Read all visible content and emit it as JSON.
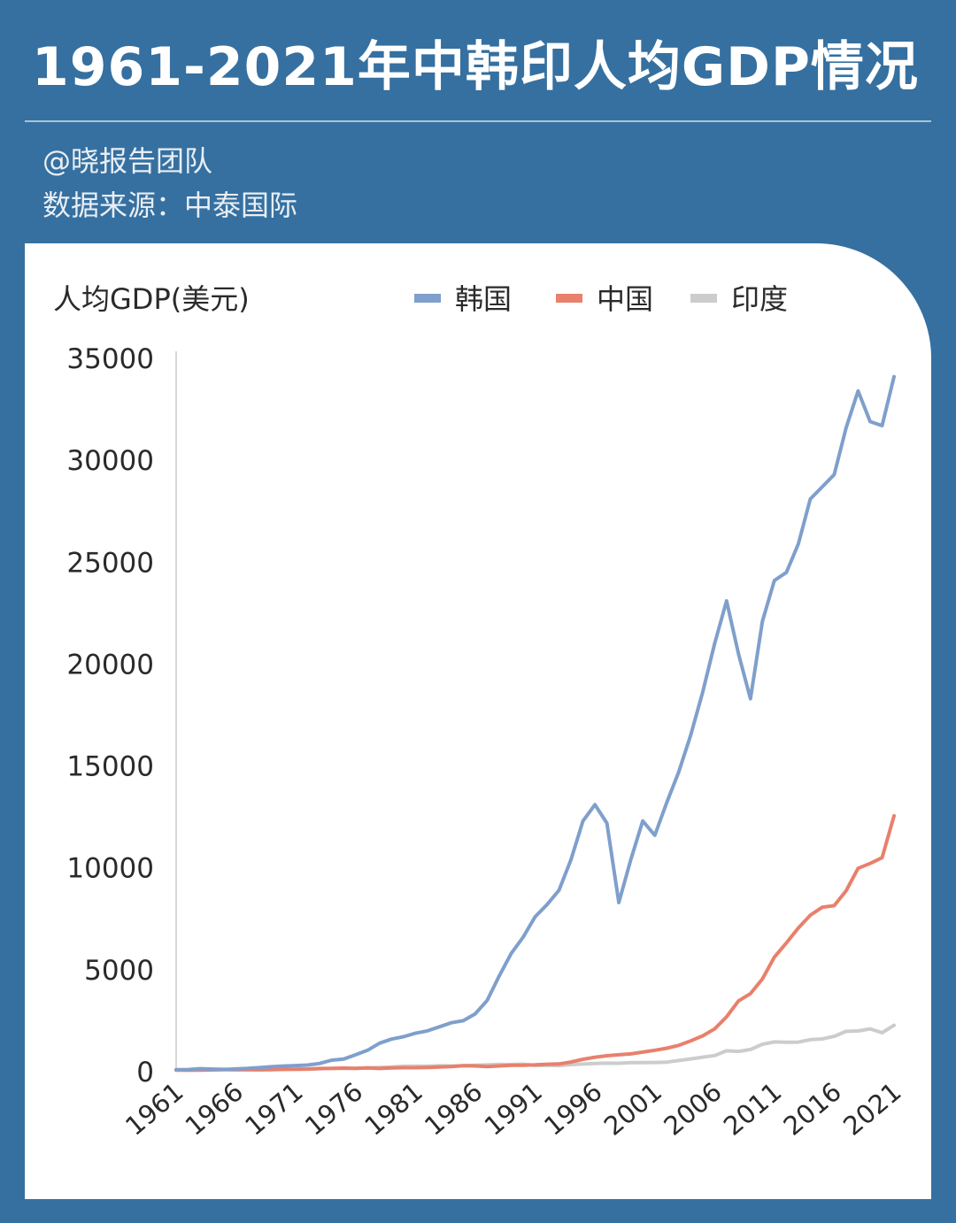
{
  "header": {
    "title": "1961-2021年中韩印人均GDP情况",
    "credit": "@晓报告团队",
    "source": "数据来源：中泰国际"
  },
  "chart_data": {
    "type": "line",
    "ylabel": "人均GDP(美元)",
    "ylim": [
      0,
      35000
    ],
    "yticks": [
      0,
      5000,
      10000,
      15000,
      20000,
      25000,
      30000,
      35000
    ],
    "xlim": [
      1961,
      2021
    ],
    "xticks": [
      "1961",
      "1966",
      "1971",
      "1976",
      "1981",
      "1986",
      "1991",
      "1996",
      "2001",
      "2006",
      "2011",
      "2016",
      "2021"
    ],
    "legend_position": "top",
    "grid": false,
    "series": [
      {
        "name": "韩国",
        "color": "#7f9fcc",
        "x": [
          1961,
          1962,
          1963,
          1964,
          1965,
          1966,
          1967,
          1968,
          1969,
          1970,
          1971,
          1972,
          1973,
          1974,
          1975,
          1976,
          1977,
          1978,
          1979,
          1980,
          1981,
          1982,
          1983,
          1984,
          1985,
          1986,
          1987,
          1988,
          1989,
          1990,
          1991,
          1992,
          1993,
          1994,
          1995,
          1996,
          1997,
          1998,
          1999,
          2000,
          2001,
          2002,
          2003,
          2004,
          2005,
          2006,
          2007,
          2008,
          2009,
          2010,
          2011,
          2012,
          2013,
          2014,
          2015,
          2016,
          2017,
          2018,
          2019,
          2020,
          2021
        ],
        "values": [
          94,
          106,
          146,
          124,
          109,
          133,
          161,
          198,
          243,
          279,
          301,
          324,
          406,
          564,
          615,
          830,
          1051,
          1400,
          1600,
          1715,
          1883,
          2000,
          2200,
          2400,
          2500,
          2840,
          3500,
          4700,
          5800,
          6600,
          7600,
          8200,
          8900,
          10400,
          12300,
          13100,
          12200,
          8300,
          10400,
          12300,
          11600,
          13200,
          14700,
          16500,
          18600,
          21000,
          23100,
          20500,
          18300,
          22100,
          24100,
          24500,
          25900,
          28100,
          28700,
          29300,
          31600,
          33400,
          31900,
          31700,
          34100
        ]
      },
      {
        "name": "中国",
        "color": "#e8806c",
        "x": [
          1961,
          1962,
          1963,
          1964,
          1965,
          1966,
          1967,
          1968,
          1969,
          1970,
          1971,
          1972,
          1973,
          1974,
          1975,
          1976,
          1977,
          1978,
          1979,
          1980,
          1981,
          1982,
          1983,
          1984,
          1985,
          1986,
          1987,
          1988,
          1989,
          1990,
          1991,
          1992,
          1993,
          1994,
          1995,
          1996,
          1997,
          1998,
          1999,
          2000,
          2001,
          2002,
          2003,
          2004,
          2005,
          2006,
          2007,
          2008,
          2009,
          2010,
          2011,
          2012,
          2013,
          2014,
          2015,
          2016,
          2017,
          2018,
          2019,
          2020,
          2021
        ],
        "values": [
          76,
          70,
          74,
          85,
          98,
          104,
          97,
          91,
          100,
          113,
          119,
          132,
          157,
          160,
          178,
          165,
          185,
          156,
          184,
          195,
          197,
          203,
          225,
          250,
          294,
          281,
          252,
          284,
          311,
          318,
          333,
          366,
          377,
          473,
          610,
          709,
          782,
          829,
          873,
          959,
          1053,
          1149,
          1289,
          1509,
          1753,
          2099,
          2694,
          3468,
          3832,
          4550,
          5618,
          6317,
          7051,
          7679,
          8067,
          8148,
          8879,
          9977,
          10216,
          10500,
          12556
        ]
      },
      {
        "name": "印度",
        "color": "#cccccc",
        "x": [
          1961,
          1962,
          1963,
          1964,
          1965,
          1966,
          1967,
          1968,
          1969,
          1970,
          1971,
          1972,
          1973,
          1974,
          1975,
          1976,
          1977,
          1978,
          1979,
          1980,
          1981,
          1982,
          1983,
          1984,
          1985,
          1986,
          1987,
          1988,
          1989,
          1990,
          1991,
          1992,
          1993,
          1994,
          1995,
          1996,
          1997,
          1998,
          1999,
          2000,
          2001,
          2002,
          2003,
          2004,
          2005,
          2006,
          2007,
          2008,
          2009,
          2010,
          2011,
          2012,
          2013,
          2014,
          2015,
          2016,
          2017,
          2018,
          2019,
          2020,
          2021
        ],
        "values": [
          86,
          90,
          101,
          116,
          119,
          90,
          96,
          100,
          108,
          112,
          119,
          122,
          143,
          163,
          158,
          161,
          186,
          205,
          224,
          267,
          271,
          275,
          292,
          277,
          296,
          311,
          340,
          354,
          347,
          368,
          303,
          317,
          301,
          346,
          374,
          400,
          415,
          413,
          442,
          443,
          452,
          471,
          546,
          624,
          710,
          792,
          1023,
          993,
          1090,
          1346,
          1458,
          1444,
          1450,
          1574,
          1606,
          1733,
          1981,
          1997,
          2101,
          1910,
          2277
        ]
      }
    ]
  }
}
